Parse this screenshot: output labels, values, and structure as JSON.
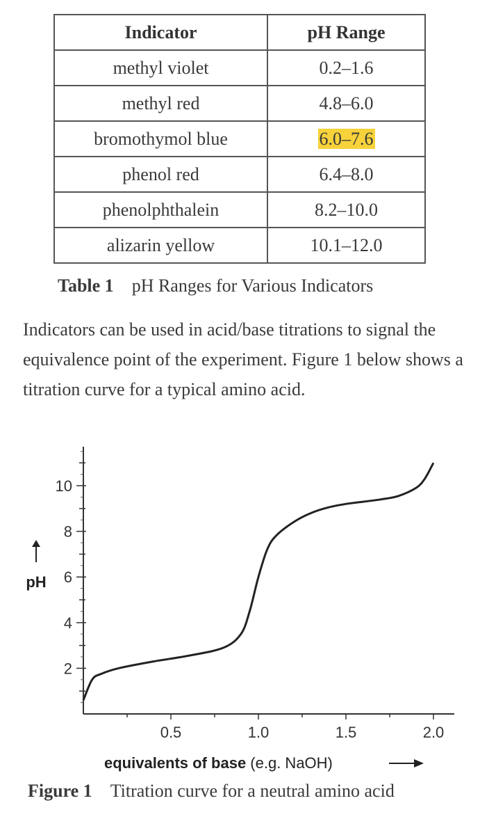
{
  "table": {
    "headers": [
      "Indicator",
      "pH Range"
    ],
    "rows": [
      {
        "indicator": "methyl violet",
        "range": "0.2–1.6",
        "highlighted": false
      },
      {
        "indicator": "methyl red",
        "range": "4.8–6.0",
        "highlighted": false
      },
      {
        "indicator": "bromothymol blue",
        "range": "6.0–7.6",
        "highlighted": true
      },
      {
        "indicator": "phenol red",
        "range": "6.4–8.0",
        "highlighted": false
      },
      {
        "indicator": "phenolphthalein",
        "range": "8.2–10.0",
        "highlighted": false
      },
      {
        "indicator": "alizarin yellow",
        "range": "10.1–12.0",
        "highlighted": false
      }
    ],
    "highlight_color": "#f7d23a",
    "caption_label": "Table 1",
    "caption_text": "pH Ranges for Various Indicators"
  },
  "paragraph": "Indicators can be used in acid/base titrations to signal the equivalence point of the experiment. Figure 1 below shows a titration curve for a typical amino acid.",
  "chart_data": {
    "type": "line",
    "xlabel_bold": "equivalents of base",
    "xlabel_rest": "(e.g. NaOH)",
    "ylabel": "pH",
    "x_ticks": [
      "0.5",
      "1.0",
      "1.5",
      "2.0"
    ],
    "y_ticks": [
      "2",
      "4",
      "6",
      "8",
      "10"
    ],
    "xlim": [
      0,
      2.1
    ],
    "ylim": [
      0,
      11.5
    ],
    "grid": false,
    "series": [
      {
        "x": [
          0,
          0.05,
          0.1,
          0.2,
          0.4,
          0.6,
          0.8,
          0.9,
          0.95,
          1.0,
          1.05,
          1.1,
          1.2,
          1.3,
          1.4,
          1.5,
          1.6,
          1.7,
          1.8,
          1.9,
          1.95,
          2.0
        ],
        "y": [
          0.6,
          1.5,
          1.75,
          2.0,
          2.3,
          2.55,
          2.9,
          3.5,
          4.5,
          6.0,
          7.2,
          7.8,
          8.4,
          8.8,
          9.05,
          9.2,
          9.3,
          9.4,
          9.55,
          9.9,
          10.3,
          11.0
        ]
      }
    ]
  },
  "figure": {
    "caption_label": "Figure 1",
    "caption_text": "Titration curve for a neutral amino acid"
  }
}
